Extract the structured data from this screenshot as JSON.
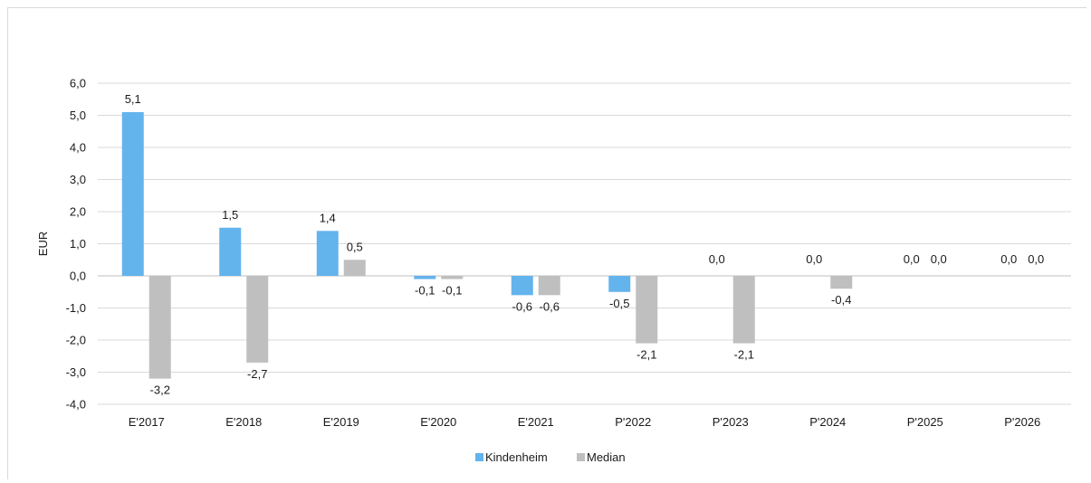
{
  "chart_data": {
    "type": "bar",
    "title": "",
    "xlabel": "",
    "ylabel": "EUR",
    "categories": [
      "E'2017",
      "E'2018",
      "E'2019",
      "E'2020",
      "E'2021",
      "P'2022",
      "P'2023",
      "P'2024",
      "P'2025",
      "P'2026"
    ],
    "series": [
      {
        "name": "Kindenheim",
        "color": "#63b3ed",
        "values": [
          5.1,
          1.5,
          1.4,
          -0.1,
          -0.6,
          -0.5,
          0.0,
          0.0,
          0.0,
          0.0
        ],
        "labels": [
          "5,1",
          "1,5",
          "1,4",
          "-0,1",
          "-0,6",
          "-0,5",
          "0,0",
          "0,0",
          "0,0",
          "0,0"
        ]
      },
      {
        "name": "Median",
        "color": "#bfbfbf",
        "values": [
          -3.2,
          -2.7,
          0.5,
          -0.1,
          -0.6,
          -2.1,
          -2.1,
          -0.4,
          0.0,
          0.0
        ],
        "labels": [
          "-3,2",
          "-2,7",
          "0,5",
          "-0,1",
          "-0,6",
          "-2,1",
          "-2,1",
          "-0,4",
          "0,0",
          "0,0"
        ]
      }
    ],
    "ylim": [
      -4.0,
      6.0
    ],
    "yticks": [
      6.0,
      5.0,
      4.0,
      3.0,
      2.0,
      1.0,
      0.0,
      -1.0,
      -2.0,
      -3.0,
      -4.0
    ],
    "ytick_labels": [
      "6,0",
      "5,0",
      "4,0",
      "3,0",
      "2,0",
      "1,0",
      "0,0",
      "-1,0",
      "-2,0",
      "-3,0",
      "-4,0"
    ],
    "grid": true,
    "legend_position": "bottom"
  }
}
